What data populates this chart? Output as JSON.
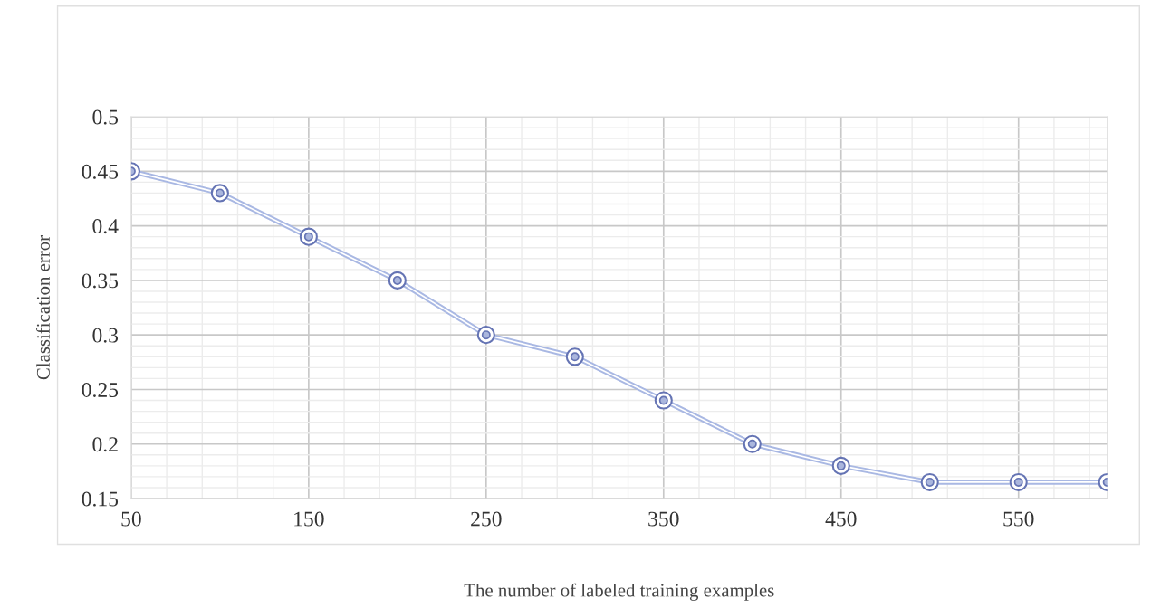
{
  "chart_data": {
    "type": "line",
    "xlabel": "The number of labeled training examples",
    "ylabel": "Classification error",
    "x": [
      50,
      100,
      150,
      200,
      250,
      300,
      350,
      400,
      450,
      500,
      550,
      600
    ],
    "series": [
      {
        "color": "#a9b8e3",
        "values": [
          0.45,
          0.43,
          0.39,
          0.35,
          0.3,
          0.28,
          0.24,
          0.2,
          0.18,
          0.165,
          0.165,
          0.165
        ]
      }
    ],
    "xlim": [
      50,
      600
    ],
    "xticks": [
      50,
      150,
      250,
      350,
      450,
      550
    ],
    "ylim": [
      0.15,
      0.5
    ],
    "yticks": [
      0.15,
      0.2,
      0.25,
      0.3,
      0.35,
      0.4,
      0.45,
      0.5
    ],
    "grid": true,
    "marker": "circle",
    "line_style": "solid"
  }
}
